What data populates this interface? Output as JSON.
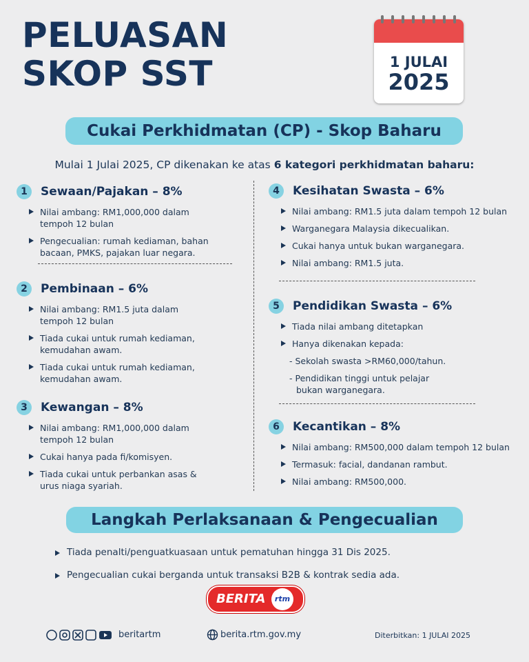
{
  "header": {
    "title_lines": [
      "PELUASAN",
      "SKOP SST"
    ],
    "calendar": {
      "day_month": "1 JULAI",
      "year": "2025"
    }
  },
  "section1": {
    "heading": "Cukai Perkhidmatan (CP) - Skop Baharu",
    "intro": {
      "text": "Mulai 1 Julai 2025, CP dikenakan ke atas",
      "bold": "6 kategori perkhidmatan baharu:"
    },
    "categories": [
      {
        "number": "1",
        "title": "Sewaan/Pajakan – 8%",
        "items": [
          {
            "text": "Nilai ambang: RM1,000,000 dalam tempoh 12 bulan"
          },
          {
            "text": "Pengecualian: rumah kediaman, bahan bacaan, PMKS, pajakan luar negara."
          }
        ]
      },
      {
        "number": "2",
        "title": "Pembinaan – 6%",
        "items": [
          {
            "text": "Nilai ambang: RM1.5 juta dalam tempoh 12 bulan"
          },
          {
            "text": "Tiada cukai untuk rumah kediaman, kemudahan awam."
          },
          {
            "text": "Tiada cukai untuk rumah kediaman, kemudahan awam."
          }
        ]
      },
      {
        "number": "3",
        "title": "Kewangan – 8%",
        "items": [
          {
            "text": "Nilai ambang: RM1,000,000 dalam tempoh 12 bulan"
          },
          {
            "text": "Cukai hanya pada fi/komisyen."
          },
          {
            "text": "Tiada cukai untuk perbankan asas & urus niaga syariah."
          }
        ]
      },
      {
        "number": "4",
        "title": "Kesihatan Swasta – 6%",
        "items": [
          {
            "text": "Nilai ambang: RM1.5 juta dalam tempoh 12 bulan"
          },
          {
            "text": "Warganegara Malaysia dikecualikan."
          },
          {
            "text": "Cukai hanya untuk bukan warganegara."
          },
          {
            "text": "Nilai ambang: RM1.5 juta."
          }
        ]
      },
      {
        "number": "5",
        "title": "Pendidikan Swasta – 6%",
        "items": [
          {
            "text": "Tiada nilai ambang ditetapkan"
          },
          {
            "text": "Hanya dikenakan kepada:",
            "sub": [
              "- Sekolah swasta >RM60,000/tahun.",
              "- Pendidikan tinggi untuk pelajar bukan warganegara."
            ]
          }
        ]
      },
      {
        "number": "6",
        "title": "Kecantikan – 8%",
        "items": [
          {
            "text": "Nilai ambang: RM500,000 dalam tempoh 12 bulan"
          },
          {
            "text": "Termasuk: facial, dandanan rambut."
          },
          {
            "text": "Nilai ambang: RM500,000."
          }
        ]
      }
    ]
  },
  "section2": {
    "heading": "Langkah Perlaksanaan & Pengecualian",
    "items": [
      "Tiada penalti/penguatkuasaan untuk pematuhan hingga 31 Dis 2025.",
      "Pengecualian cukai berganda untuk transaksi B2B & kontrak sedia ada."
    ]
  },
  "footer": {
    "logo": {
      "brand": "BERITA",
      "badge": "rtm"
    },
    "social_handle": "beritartm",
    "website": "berita.rtm.gov.my",
    "published": "Diterbitkan: 1 JULAI 2025"
  }
}
